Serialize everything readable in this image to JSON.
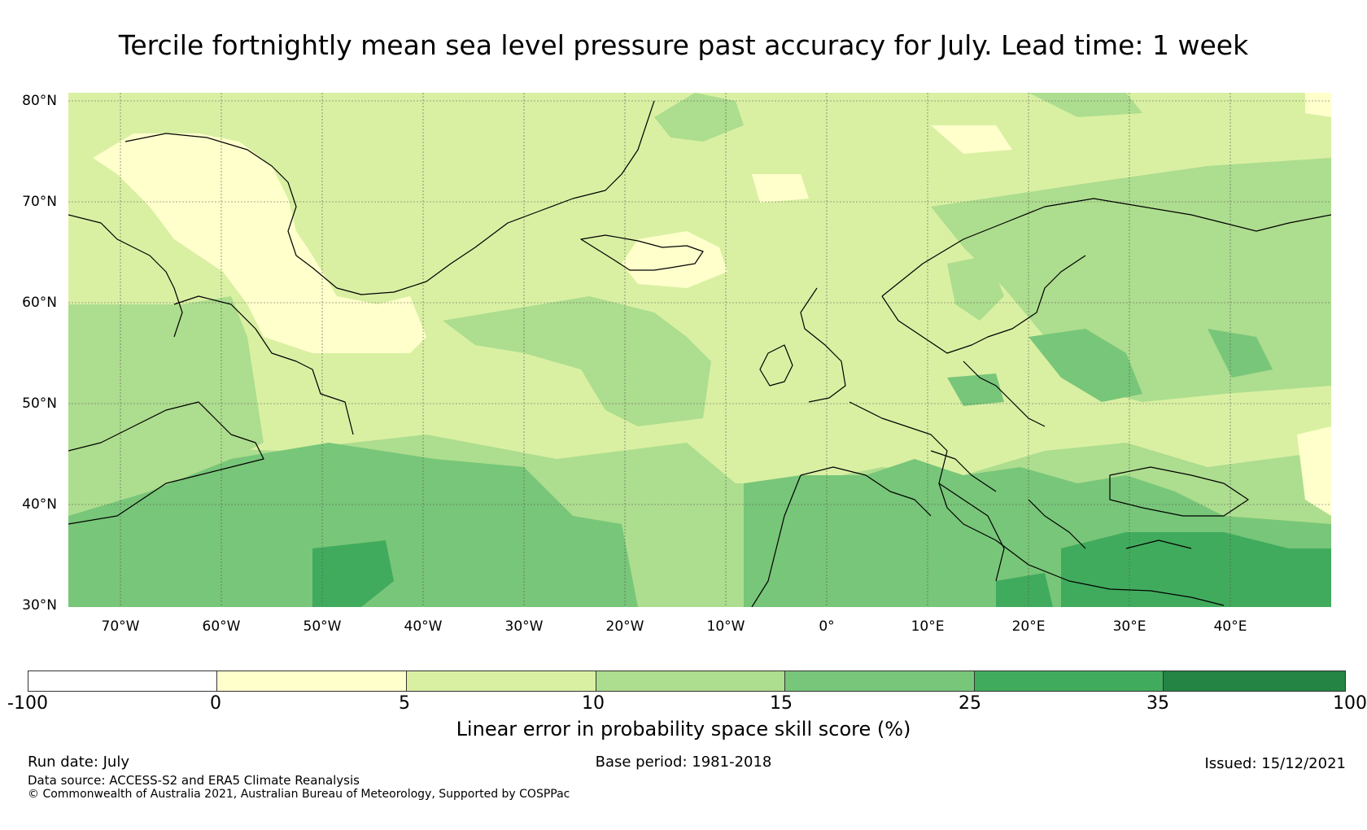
{
  "title": "Tercile fortnightly mean sea level pressure past accuracy for July. Lead time: 1 week",
  "map": {
    "lat_labels": [
      "80°N",
      "70°N",
      "60°N",
      "50°N",
      "40°N",
      "30°N"
    ],
    "lon_labels": [
      "70°W",
      "60°W",
      "50°W",
      "40°W",
      "30°W",
      "20°W",
      "10°W",
      "0°",
      "10°E",
      "20°E",
      "30°E",
      "40°E"
    ],
    "colors": {
      "c0": "#ffffcc",
      "c5": "#d9f0a3",
      "c10": "#addd8e",
      "c15": "#78c679",
      "c25": "#41ab5d",
      "c35": "#238443"
    }
  },
  "colorbar": {
    "ticks": [
      "-100",
      "0",
      "5",
      "10",
      "15",
      "25",
      "35",
      "100"
    ],
    "label": "Linear error in probability space skill score (%)",
    "colors": [
      "#ffffff",
      "#ffffcc",
      "#d9f0a3",
      "#addd8e",
      "#78c679",
      "#41ab5d",
      "#238443"
    ]
  },
  "footer": {
    "run_date": "Run date: July",
    "base_period": "Base period: 1981-2018",
    "issued": "Issued: 15/12/2021",
    "data_source": "Data source: ACCESS-S2 and ERA5 Climate Reanalysis",
    "copyright": "© Commonwealth of Australia 2021, Australian Bureau of Meteorology, Supported by COSPPac"
  }
}
